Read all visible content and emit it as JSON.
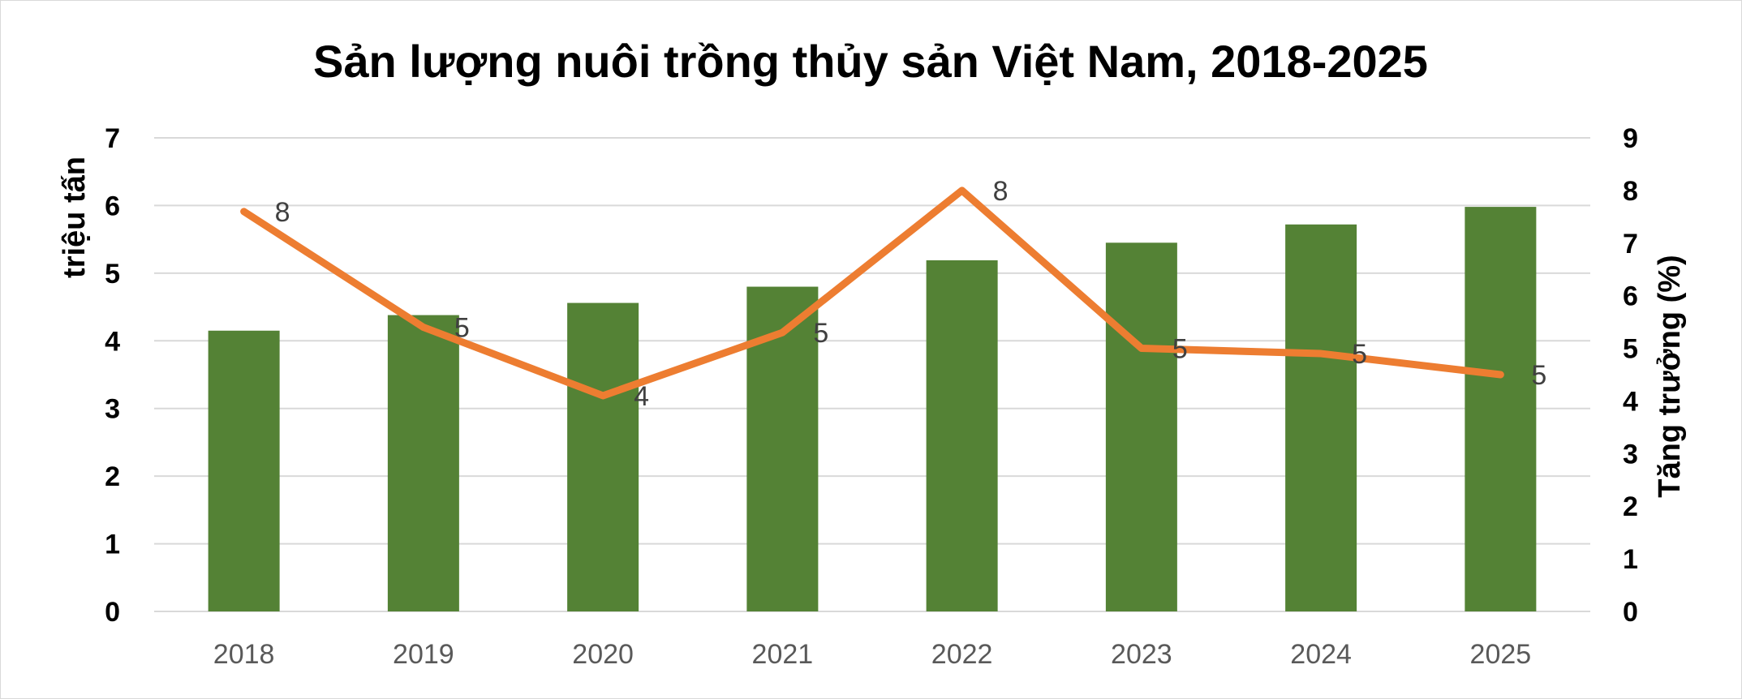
{
  "chart_data": {
    "type": "bar",
    "title": "Sản lượng nuôi trồng thủy sản Việt Nam, 2018-2025",
    "ylabel": "triệu tấn",
    "y2label": "Tăng trưởng (%)",
    "categories": [
      "2018",
      "2019",
      "2020",
      "2021",
      "2022",
      "2023",
      "2024",
      "2025"
    ],
    "series": [
      {
        "type": "bar",
        "axis": "left",
        "color": "#548235",
        "values": [
          4.15,
          4.38,
          4.56,
          4.8,
          5.19,
          5.45,
          5.72,
          5.98
        ]
      },
      {
        "type": "line",
        "axis": "right",
        "color": "#ed7d31",
        "values": [
          7.6,
          5.4,
          4.1,
          5.3,
          8.0,
          5.0,
          4.9,
          4.5
        ],
        "labels": [
          "8",
          "5",
          "4",
          "5",
          "8",
          "5",
          "5",
          "5"
        ]
      }
    ],
    "ylim": [
      0,
      7
    ],
    "y_ticks": [
      "0",
      "1",
      "2",
      "3",
      "4",
      "5",
      "6",
      "7"
    ],
    "y2lim": [
      0,
      9
    ],
    "y2_ticks": [
      "0",
      "1",
      "2",
      "3",
      "4",
      "5",
      "6",
      "7",
      "8",
      "9"
    ],
    "grid": true,
    "legend": "none"
  }
}
